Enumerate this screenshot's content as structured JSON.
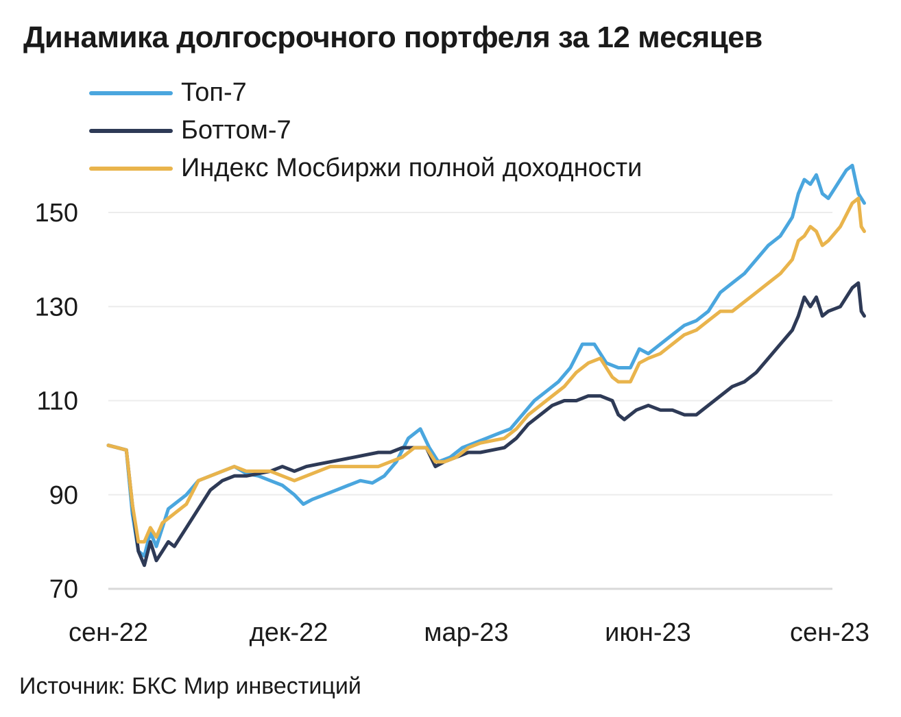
{
  "chart_data": {
    "type": "line",
    "title": "Динамика долгосрочного портфеля за 12 месяцев",
    "source": "Источник: БКС Мир инвестиций",
    "xlabel": "",
    "ylabel": "",
    "x_ticks": [
      "сен-22",
      "дек-22",
      "мар-23",
      "июн-23",
      "сен-23"
    ],
    "y_ticks": [
      70,
      90,
      110,
      130,
      150
    ],
    "ylim": [
      70,
      160
    ],
    "xlim": [
      0,
      12
    ],
    "grid": true,
    "legend_position": "top-left",
    "series": [
      {
        "name": "Топ-7",
        "color": "#4aa6de",
        "points": [
          [
            0,
            100.5
          ],
          [
            0.15,
            100
          ],
          [
            0.3,
            99.5
          ],
          [
            0.4,
            86
          ],
          [
            0.5,
            78
          ],
          [
            0.6,
            77
          ],
          [
            0.7,
            82
          ],
          [
            0.8,
            79
          ],
          [
            0.9,
            83
          ],
          [
            1.0,
            87
          ],
          [
            1.1,
            88
          ],
          [
            1.3,
            90
          ],
          [
            1.5,
            93
          ],
          [
            1.7,
            94
          ],
          [
            1.9,
            95
          ],
          [
            2.1,
            96
          ],
          [
            2.3,
            94.5
          ],
          [
            2.5,
            94
          ],
          [
            2.7,
            93
          ],
          [
            2.9,
            92
          ],
          [
            3.1,
            90
          ],
          [
            3.25,
            88
          ],
          [
            3.4,
            89
          ],
          [
            3.6,
            90
          ],
          [
            3.8,
            91
          ],
          [
            4.0,
            92
          ],
          [
            4.2,
            93
          ],
          [
            4.4,
            92.5
          ],
          [
            4.6,
            94
          ],
          [
            4.8,
            97
          ],
          [
            5.0,
            102
          ],
          [
            5.2,
            104
          ],
          [
            5.35,
            100
          ],
          [
            5.5,
            97
          ],
          [
            5.7,
            98
          ],
          [
            5.9,
            100
          ],
          [
            6.1,
            101
          ],
          [
            6.3,
            102
          ],
          [
            6.5,
            103
          ],
          [
            6.7,
            104
          ],
          [
            6.9,
            107
          ],
          [
            7.1,
            110
          ],
          [
            7.3,
            112
          ],
          [
            7.5,
            114
          ],
          [
            7.7,
            117
          ],
          [
            7.9,
            122
          ],
          [
            8.1,
            122
          ],
          [
            8.3,
            118
          ],
          [
            8.5,
            117
          ],
          [
            8.7,
            117
          ],
          [
            8.85,
            121
          ],
          [
            9.0,
            120
          ],
          [
            9.2,
            122
          ],
          [
            9.4,
            124
          ],
          [
            9.6,
            126
          ],
          [
            9.8,
            127
          ],
          [
            10.0,
            129
          ],
          [
            10.2,
            133
          ],
          [
            10.4,
            135
          ],
          [
            10.6,
            137
          ],
          [
            10.8,
            140
          ],
          [
            11.0,
            143
          ],
          [
            11.2,
            145
          ],
          [
            11.4,
            149
          ],
          [
            11.5,
            154
          ],
          [
            11.6,
            157
          ],
          [
            11.7,
            156
          ],
          [
            11.8,
            158
          ],
          [
            11.9,
            154
          ],
          [
            12.0,
            153
          ],
          [
            12.1,
            155
          ],
          [
            12.2,
            157
          ],
          [
            12.3,
            159
          ],
          [
            12.4,
            160
          ],
          [
            12.5,
            154
          ],
          [
            12.6,
            152
          ]
        ]
      },
      {
        "name": "Боттом-7",
        "color": "#2e3a56",
        "points": [
          [
            0,
            100.5
          ],
          [
            0.15,
            100
          ],
          [
            0.3,
            99.5
          ],
          [
            0.4,
            88
          ],
          [
            0.5,
            78
          ],
          [
            0.6,
            75
          ],
          [
            0.7,
            80
          ],
          [
            0.8,
            76
          ],
          [
            0.9,
            78
          ],
          [
            1.0,
            80
          ],
          [
            1.1,
            79
          ],
          [
            1.3,
            83
          ],
          [
            1.5,
            87
          ],
          [
            1.7,
            91
          ],
          [
            1.9,
            93
          ],
          [
            2.1,
            94
          ],
          [
            2.3,
            94
          ],
          [
            2.5,
            94.5
          ],
          [
            2.7,
            95
          ],
          [
            2.9,
            96
          ],
          [
            3.1,
            95
          ],
          [
            3.3,
            96
          ],
          [
            3.5,
            96.5
          ],
          [
            3.7,
            97
          ],
          [
            3.9,
            97.5
          ],
          [
            4.1,
            98
          ],
          [
            4.3,
            98.5
          ],
          [
            4.5,
            99
          ],
          [
            4.7,
            99
          ],
          [
            4.9,
            100
          ],
          [
            5.1,
            100
          ],
          [
            5.3,
            100
          ],
          [
            5.45,
            96
          ],
          [
            5.6,
            97
          ],
          [
            5.8,
            98
          ],
          [
            6.0,
            99
          ],
          [
            6.2,
            99
          ],
          [
            6.4,
            99.5
          ],
          [
            6.6,
            100
          ],
          [
            6.8,
            102
          ],
          [
            7.0,
            105
          ],
          [
            7.2,
            107
          ],
          [
            7.4,
            109
          ],
          [
            7.6,
            110
          ],
          [
            7.8,
            110
          ],
          [
            8.0,
            111
          ],
          [
            8.2,
            111
          ],
          [
            8.4,
            110
          ],
          [
            8.5,
            107
          ],
          [
            8.6,
            106
          ],
          [
            8.8,
            108
          ],
          [
            9.0,
            109
          ],
          [
            9.2,
            108
          ],
          [
            9.4,
            108
          ],
          [
            9.6,
            107
          ],
          [
            9.8,
            107
          ],
          [
            10.0,
            109
          ],
          [
            10.2,
            111
          ],
          [
            10.4,
            113
          ],
          [
            10.6,
            114
          ],
          [
            10.8,
            116
          ],
          [
            11.0,
            119
          ],
          [
            11.2,
            122
          ],
          [
            11.4,
            125
          ],
          [
            11.5,
            128
          ],
          [
            11.6,
            132
          ],
          [
            11.7,
            130
          ],
          [
            11.8,
            132
          ],
          [
            11.9,
            128
          ],
          [
            12.0,
            129
          ],
          [
            12.2,
            130
          ],
          [
            12.4,
            134
          ],
          [
            12.5,
            135
          ],
          [
            12.55,
            129
          ],
          [
            12.6,
            128
          ]
        ]
      },
      {
        "name": "Индекс Мосбиржи полной доходности",
        "color": "#e9b44c",
        "points": [
          [
            0,
            100.5
          ],
          [
            0.15,
            100
          ],
          [
            0.3,
            99.5
          ],
          [
            0.4,
            88
          ],
          [
            0.5,
            80
          ],
          [
            0.6,
            80
          ],
          [
            0.7,
            83
          ],
          [
            0.8,
            81
          ],
          [
            0.9,
            84
          ],
          [
            1.0,
            85
          ],
          [
            1.1,
            86
          ],
          [
            1.3,
            88
          ],
          [
            1.5,
            93
          ],
          [
            1.7,
            94
          ],
          [
            1.9,
            95
          ],
          [
            2.1,
            96
          ],
          [
            2.3,
            95
          ],
          [
            2.5,
            95
          ],
          [
            2.7,
            95
          ],
          [
            2.9,
            94
          ],
          [
            3.1,
            93
          ],
          [
            3.3,
            94
          ],
          [
            3.5,
            95
          ],
          [
            3.7,
            96
          ],
          [
            3.9,
            96
          ],
          [
            4.1,
            96
          ],
          [
            4.3,
            96
          ],
          [
            4.5,
            96
          ],
          [
            4.7,
            97
          ],
          [
            4.9,
            98
          ],
          [
            5.1,
            100
          ],
          [
            5.3,
            100
          ],
          [
            5.45,
            97
          ],
          [
            5.6,
            97
          ],
          [
            5.8,
            98
          ],
          [
            6.0,
            100
          ],
          [
            6.2,
            101
          ],
          [
            6.4,
            101.5
          ],
          [
            6.6,
            102
          ],
          [
            6.8,
            104
          ],
          [
            7.0,
            107
          ],
          [
            7.2,
            109
          ],
          [
            7.4,
            111
          ],
          [
            7.6,
            113
          ],
          [
            7.8,
            116
          ],
          [
            8.0,
            118
          ],
          [
            8.2,
            119
          ],
          [
            8.4,
            115
          ],
          [
            8.5,
            114
          ],
          [
            8.7,
            114
          ],
          [
            8.85,
            118
          ],
          [
            9.0,
            119
          ],
          [
            9.2,
            120
          ],
          [
            9.4,
            122
          ],
          [
            9.6,
            124
          ],
          [
            9.8,
            125
          ],
          [
            10.0,
            127
          ],
          [
            10.2,
            129
          ],
          [
            10.4,
            129
          ],
          [
            10.6,
            131
          ],
          [
            10.8,
            133
          ],
          [
            11.0,
            135
          ],
          [
            11.2,
            137
          ],
          [
            11.4,
            140
          ],
          [
            11.5,
            144
          ],
          [
            11.6,
            145
          ],
          [
            11.7,
            147
          ],
          [
            11.8,
            146
          ],
          [
            11.9,
            143
          ],
          [
            12.0,
            144
          ],
          [
            12.2,
            147
          ],
          [
            12.4,
            152
          ],
          [
            12.5,
            153
          ],
          [
            12.55,
            147
          ],
          [
            12.6,
            146
          ]
        ]
      }
    ]
  }
}
